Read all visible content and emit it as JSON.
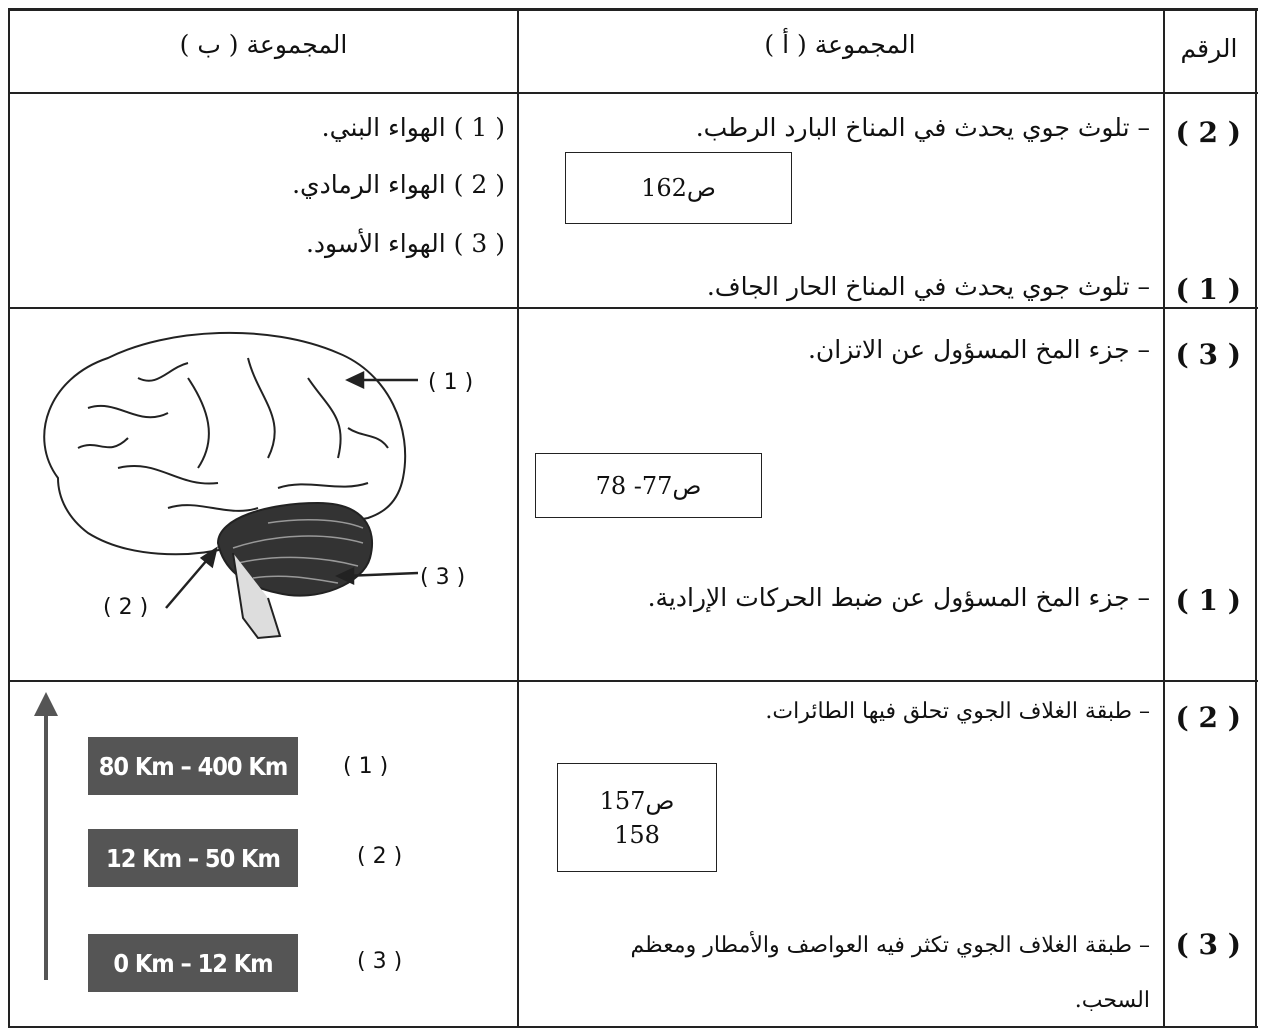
{
  "header": {
    "number": "الرقم",
    "group_a": "المجموعة ( أ )",
    "group_b": "المجموعة ( ب )"
  },
  "rows": [
    {
      "numbers": [
        "( 2 )",
        "( 1 )"
      ],
      "group_a": {
        "items": [
          "– تلوث جوي يحدث في المناخ البارد الرطب.",
          "– تلوث جوي يحدث في المناخ الحار الجاف."
        ],
        "note": [
          "ص162"
        ]
      },
      "group_b": {
        "items": [
          "( 1 ) الهواء البني.",
          "( 2 ) الهواء الرمادي.",
          "( 3 ) الهواء الأسود."
        ]
      }
    },
    {
      "numbers": [
        "( 3 )",
        "( 1 )"
      ],
      "group_a": {
        "items": [
          "– جزء المخ المسؤول عن الاتزان.",
          "– جزء المخ المسؤول عن ضبط الحركات الإرادية."
        ],
        "note": [
          "ص77- 78"
        ]
      },
      "group_b": {
        "labels": [
          "( 1 )",
          "( 2 )",
          "( 3 )"
        ]
      }
    },
    {
      "numbers": [
        "( 2 )",
        "( 3 )"
      ],
      "group_a": {
        "items": [
          "– طبقة الغلاف الجوي تحلق فيها الطائرات.",
          "– طبقة الغلاف الجوي تكثر فيه العواصف والأمطار ومعظم السحب."
        ],
        "note": [
          "ص157",
          "158"
        ]
      },
      "group_b": {
        "layers": [
          "80 Km – 400 Km",
          "12 Km – 50 Km",
          "0 Km – 12 Km"
        ],
        "labels": [
          "( 1 )",
          "( 2 )",
          "( 3 )"
        ]
      }
    }
  ]
}
